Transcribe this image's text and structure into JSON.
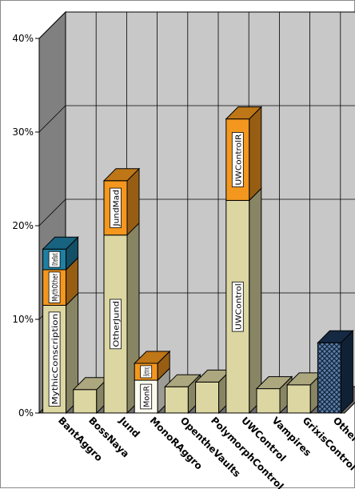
{
  "chart_data": {
    "type": "bar",
    "stacked": true,
    "three_d": true,
    "title": "",
    "xlabel": "",
    "ylabel": "",
    "ylim": [
      0,
      40
    ],
    "yticks": [
      "0%",
      "10%",
      "20%",
      "30%",
      "40%"
    ],
    "grid": true,
    "legend": "none",
    "categories": [
      "BantAggro",
      "BossNaya",
      "Jund",
      "MonoRAggro",
      "OpentheVaults",
      "PolymorphControl",
      "UWControl",
      "Vampires",
      "GrixisControl",
      "Other"
    ],
    "bars": [
      {
        "category": "BantAggro",
        "segments": [
          {
            "label": "MythicConscription",
            "value": 11.5,
            "color": "#dcd6a2"
          },
          {
            "label": "MythOther",
            "value": 3.8,
            "color": "#f3971e"
          },
          {
            "label": "OtherBant",
            "value": 2.2,
            "color": "#1f7fa3"
          }
        ]
      },
      {
        "category": "BossNaya",
        "segments": [
          {
            "label": "",
            "value": 2.5,
            "color": "#dcd6a2"
          }
        ]
      },
      {
        "category": "Jund",
        "segments": [
          {
            "label": "OtherJund",
            "value": 19.0,
            "color": "#dcd6a2"
          },
          {
            "label": "JundMad",
            "value": 5.8,
            "color": "#f3971e"
          }
        ]
      },
      {
        "category": "MonoRAggro",
        "segments": [
          {
            "label": "MonR",
            "value": 3.5,
            "color": "#fbfbef"
          },
          {
            "label": "Blightning",
            "value": 1.8,
            "color": "#f3971e"
          }
        ]
      },
      {
        "category": "OpentheVaults",
        "segments": [
          {
            "label": "",
            "value": 2.8,
            "color": "#dcd6a2"
          }
        ]
      },
      {
        "category": "PolymorphControl",
        "segments": [
          {
            "label": "",
            "value": 3.3,
            "color": "#dcd6a2"
          }
        ]
      },
      {
        "category": "UWControl",
        "segments": [
          {
            "label": "UWControl",
            "value": 22.7,
            "color": "#dcd6a2"
          },
          {
            "label": "UWControlR",
            "value": 8.7,
            "color": "#f3971e"
          }
        ]
      },
      {
        "category": "Vampires",
        "segments": [
          {
            "label": "",
            "value": 2.6,
            "color": "#dcd6a2"
          }
        ]
      },
      {
        "category": "GrixisControl",
        "segments": [
          {
            "label": "",
            "value": 3.0,
            "color": "#dcd6a2"
          }
        ]
      },
      {
        "category": "Other",
        "segments": [
          {
            "label": "",
            "value": 7.5,
            "color": "#1b3556",
            "pattern": "crosshatch"
          }
        ]
      }
    ],
    "colors": {
      "back_wall": "#c8c8c8",
      "side_wall": "#808080",
      "floor": "#6e6e6e",
      "grid": "#000000"
    }
  }
}
